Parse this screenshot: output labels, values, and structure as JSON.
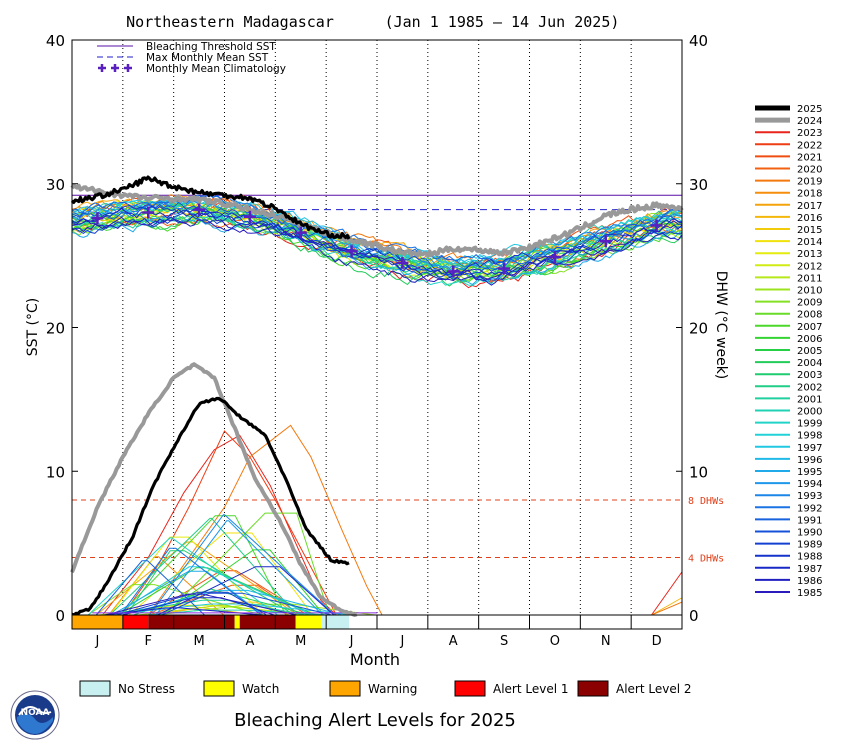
{
  "chart_data": {
    "type": "line",
    "title": {
      "region": "Northeastern Madagascar",
      "period": "(Jan 1 1985 – 14 Jun 2025)"
    },
    "xlabel": "Month",
    "months": [
      "J",
      "F",
      "M",
      "A",
      "M",
      "J",
      "J",
      "A",
      "S",
      "O",
      "N",
      "D"
    ],
    "ylabel_left": "SST (°C)",
    "ylabel_right": "DHW (°C week)",
    "ylim": [
      0,
      40
    ],
    "yticks": [
      0,
      10,
      20,
      30,
      40
    ],
    "legend_top": {
      "bleaching_threshold": "Bleaching Threshold SST",
      "max_monthly_mean": "Max Monthly Mean SST",
      "monthly_climatology": "Monthly Mean Climatology"
    },
    "bleaching_threshold_sst": 29.2,
    "max_monthly_mean_sst": 28.2,
    "monthly_climatology": [
      {
        "month": 0.5,
        "value": 27.6
      },
      {
        "month": 1.5,
        "value": 28.0
      },
      {
        "month": 2.5,
        "value": 28.2
      },
      {
        "month": 3.5,
        "value": 27.7
      },
      {
        "month": 4.5,
        "value": 26.6
      },
      {
        "month": 5.5,
        "value": 25.3
      },
      {
        "month": 6.5,
        "value": 24.5
      },
      {
        "month": 7.5,
        "value": 23.9
      },
      {
        "month": 8.5,
        "value": 24.1
      },
      {
        "month": 9.5,
        "value": 24.9
      },
      {
        "month": 10.5,
        "value": 26.0
      },
      {
        "month": 11.5,
        "value": 27.1
      }
    ],
    "dhw_reference_lines": [
      {
        "value": 8,
        "label": "8 DHWs"
      },
      {
        "value": 4,
        "label": "4 DHWs"
      }
    ],
    "series": [
      {
        "name": "2025",
        "color": "#000000",
        "emphasis": true,
        "sst": [
          [
            0,
            28.8
          ],
          [
            0.5,
            29.1
          ],
          [
            1,
            29.6
          ],
          [
            1.5,
            30.4
          ],
          [
            2,
            29.8
          ],
          [
            2.5,
            29.4
          ],
          [
            3,
            29.2
          ],
          [
            3.5,
            29.0
          ],
          [
            4,
            28.3
          ],
          [
            4.5,
            27.2
          ],
          [
            5,
            26.5
          ],
          [
            5.45,
            26.3
          ]
        ],
        "dhw": [
          [
            0,
            0
          ],
          [
            0.35,
            0.4
          ],
          [
            0.7,
            2.3
          ],
          [
            1.2,
            5.5
          ],
          [
            1.6,
            9.0
          ],
          [
            2.1,
            12.3
          ],
          [
            2.5,
            14.7
          ],
          [
            2.9,
            15.1
          ],
          [
            3.3,
            13.8
          ],
          [
            3.8,
            12.5
          ],
          [
            4.2,
            9.5
          ],
          [
            4.6,
            6.0
          ],
          [
            5.1,
            3.8
          ],
          [
            5.45,
            3.6
          ]
        ]
      },
      {
        "name": "2024",
        "color": "#999999",
        "emphasis": true,
        "sst": [
          [
            0,
            29.8
          ],
          [
            0.5,
            29.5
          ],
          [
            1,
            29.2
          ],
          [
            1.5,
            29.0
          ],
          [
            2,
            29.0
          ],
          [
            2.5,
            28.9
          ],
          [
            3,
            28.6
          ],
          [
            3.5,
            28.2
          ],
          [
            4,
            27.8
          ],
          [
            4.5,
            27.2
          ],
          [
            5,
            26.6
          ],
          [
            5.5,
            26.1
          ],
          [
            6,
            25.7
          ],
          [
            6.5,
            25.2
          ],
          [
            7,
            25.1
          ],
          [
            7.5,
            25.5
          ],
          [
            8,
            25.4
          ],
          [
            8.5,
            25.2
          ],
          [
            9,
            25.6
          ],
          [
            9.5,
            26.2
          ],
          [
            10,
            26.9
          ],
          [
            10.5,
            27.8
          ],
          [
            11,
            28.2
          ],
          [
            11.5,
            28.5
          ],
          [
            12,
            28.3
          ]
        ],
        "dhw": [
          [
            0,
            3.0
          ],
          [
            0.5,
            7.5
          ],
          [
            1,
            11.0
          ],
          [
            1.5,
            14.0
          ],
          [
            2,
            16.5
          ],
          [
            2.4,
            17.4
          ],
          [
            2.8,
            16.5
          ],
          [
            3.2,
            13.0
          ],
          [
            3.6,
            9.5
          ],
          [
            4.1,
            6.5
          ],
          [
            4.5,
            3.5
          ],
          [
            4.9,
            1.2
          ],
          [
            5.3,
            0.3
          ],
          [
            5.6,
            0
          ]
        ]
      },
      {
        "name": "2023",
        "color": "#e8241c",
        "dhw": [
          [
            0.6,
            0
          ],
          [
            1.5,
            4.0
          ],
          [
            2.2,
            8.5
          ],
          [
            2.8,
            11.5
          ],
          [
            3.3,
            12.5
          ],
          [
            3.9,
            9.0
          ],
          [
            4.4,
            5.0
          ],
          [
            4.9,
            1.0
          ],
          [
            5.2,
            0
          ]
        ]
      },
      {
        "name": "2022",
        "color": "#ee3c14",
        "dhw": [
          [
            1.0,
            0
          ],
          [
            1.7,
            3.5
          ],
          [
            2.3,
            7.5
          ],
          [
            3.0,
            12.8
          ],
          [
            3.5,
            11.0
          ],
          [
            4.0,
            8.0
          ],
          [
            4.6,
            4.0
          ],
          [
            5.2,
            0
          ]
        ]
      },
      {
        "name": "2021",
        "color": "#f04e10"
      },
      {
        "name": "2020",
        "color": "#f26010"
      },
      {
        "name": "2019",
        "color": "#f4780c",
        "dhw": [
          [
            1.5,
            0
          ],
          [
            2.3,
            4.0
          ],
          [
            3.0,
            7.5
          ],
          [
            3.5,
            11.0
          ],
          [
            4.3,
            13.2
          ],
          [
            4.7,
            11.0
          ],
          [
            5.3,
            6.0
          ],
          [
            5.8,
            2.0
          ],
          [
            6.1,
            0
          ]
        ]
      },
      {
        "name": "2018",
        "color": "#f58e0c"
      },
      {
        "name": "2017",
        "color": "#f4a40a"
      },
      {
        "name": "2016",
        "color": "#f4b80a"
      },
      {
        "name": "2015",
        "color": "#f2cc0a"
      },
      {
        "name": "2014",
        "color": "#f0e20a"
      },
      {
        "name": "2013",
        "color": "#e4ec0e"
      },
      {
        "name": "2012",
        "color": "#d0ec14"
      },
      {
        "name": "2011",
        "color": "#b6e81a"
      },
      {
        "name": "2010",
        "color": "#9ee41e"
      },
      {
        "name": "2009",
        "color": "#84e022"
      },
      {
        "name": "2008",
        "color": "#68dc26"
      },
      {
        "name": "2007",
        "color": "#4cd82a"
      },
      {
        "name": "2006",
        "color": "#34d432"
      },
      {
        "name": "2005",
        "color": "#26d044"
      },
      {
        "name": "2004",
        "color": "#22cc5a"
      },
      {
        "name": "2003",
        "color": "#20cc70"
      },
      {
        "name": "2002",
        "color": "#20ce88"
      },
      {
        "name": "2001",
        "color": "#20d09e"
      },
      {
        "name": "2000",
        "color": "#20d2b4"
      },
      {
        "name": "1999",
        "color": "#20d4c8"
      },
      {
        "name": "1998",
        "color": "#20d2d8"
      },
      {
        "name": "1997",
        "color": "#20c8e2"
      },
      {
        "name": "1996",
        "color": "#20bae8"
      },
      {
        "name": "1995",
        "color": "#20aaea"
      },
      {
        "name": "1994",
        "color": "#1e98ea"
      },
      {
        "name": "1993",
        "color": "#1c86e8"
      },
      {
        "name": "1992",
        "color": "#1a74e4"
      },
      {
        "name": "1991",
        "color": "#1862de"
      },
      {
        "name": "1990",
        "color": "#1650d8"
      },
      {
        "name": "1989",
        "color": "#1440d2"
      },
      {
        "name": "1988",
        "color": "#1432cc"
      },
      {
        "name": "1987",
        "color": "#1828c6"
      },
      {
        "name": "1986",
        "color": "#2020c0"
      },
      {
        "name": "1985",
        "color": "#2a1cbc"
      }
    ]
  },
  "alert_bar": [
    {
      "level": "warning",
      "months": [
        0,
        1.0
      ]
    },
    {
      "level": "alert1",
      "months": [
        1.0,
        1.5
      ]
    },
    {
      "level": "alert2",
      "months": [
        1.5,
        3.2
      ]
    },
    {
      "level": "watch",
      "months": [
        3.2,
        3.3
      ]
    },
    {
      "level": "alert2",
      "months": [
        3.3,
        4.4
      ]
    },
    {
      "level": "watch",
      "months": [
        4.4,
        4.9
      ]
    },
    {
      "level": "nostress",
      "months": [
        4.9,
        5.45
      ]
    }
  ],
  "alert_levels": [
    {
      "key": "nostress",
      "label": "No Stress",
      "color": "#c8f0f0"
    },
    {
      "key": "watch",
      "label": "Watch",
      "color": "#ffff00"
    },
    {
      "key": "warning",
      "label": "Warning",
      "color": "#ffa500"
    },
    {
      "key": "alert1",
      "label": "Alert Level 1",
      "color": "#ff0000"
    },
    {
      "key": "alert2",
      "label": "Alert Level 2",
      "color": "#8b0000"
    }
  ],
  "footer_title": "Bleaching Alert Levels for 2025",
  "logo_text": "NOAA",
  "colors": {
    "threshold": "#5a0fa8",
    "max_monthly_mean": "#1f1fcf",
    "climatology": "#5a1fc0",
    "dhw_ref": "#e0401a"
  }
}
